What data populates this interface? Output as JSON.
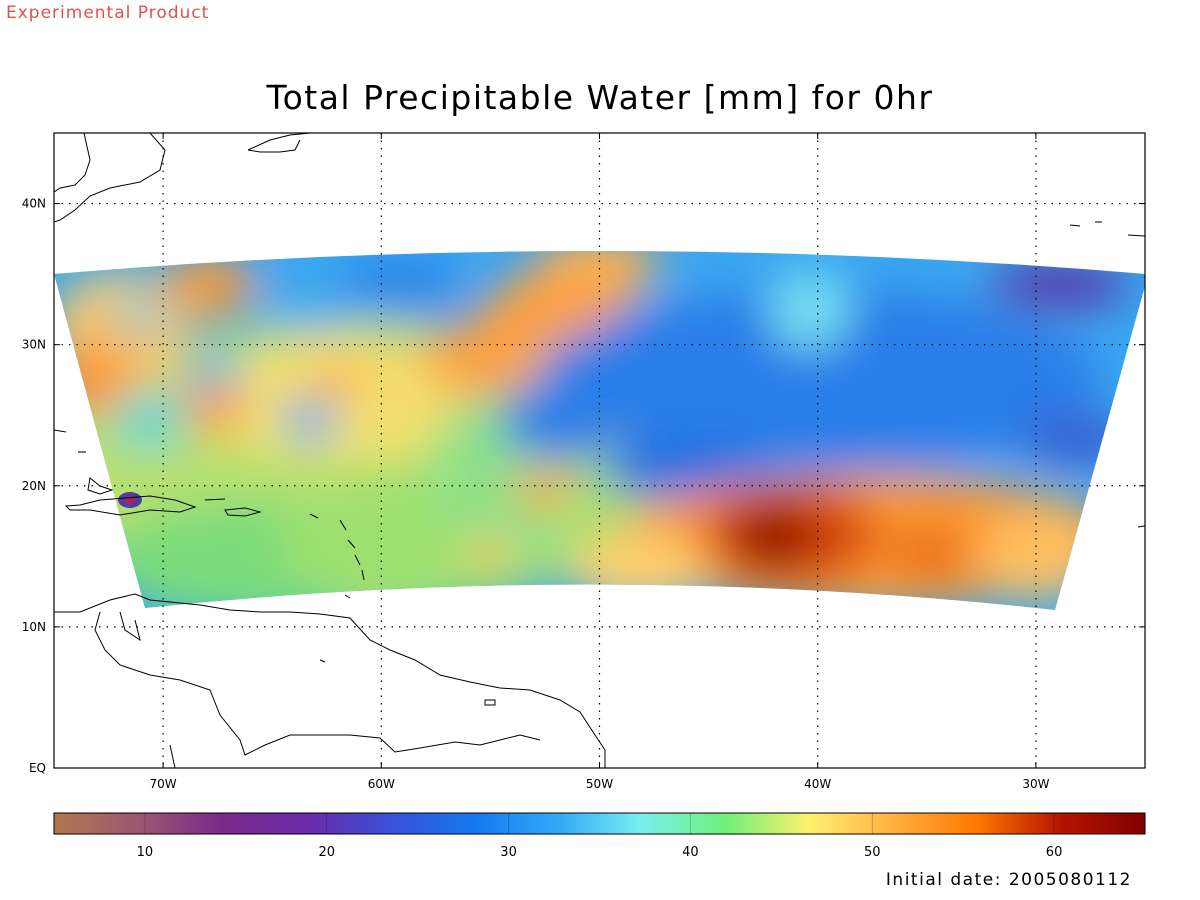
{
  "header": {
    "experimental_label": "Experimental Product",
    "title": "Total Precipitable Water [mm] for 0hr"
  },
  "map": {
    "lon_range": [
      -75,
      -25
    ],
    "lat_range": [
      0,
      45
    ],
    "lon_ticks": [
      {
        "value": -70,
        "label": "70W"
      },
      {
        "value": -60,
        "label": "60W"
      },
      {
        "value": -50,
        "label": "50W"
      },
      {
        "value": -40,
        "label": "40W"
      },
      {
        "value": -30,
        "label": "30W"
      }
    ],
    "lat_ticks": [
      {
        "value": 0,
        "label": "EQ"
      },
      {
        "value": 10,
        "label": "10N"
      },
      {
        "value": 20,
        "label": "20N"
      },
      {
        "value": 30,
        "label": "30N"
      },
      {
        "value": 40,
        "label": "40N"
      }
    ],
    "grid": "dotted",
    "field_colors": {
      "very_low": "#5a1a8c",
      "low": "#1e78e6",
      "mid_low": "#32aaf0",
      "mid": "#64dc82",
      "mid_high": "#ffe664",
      "high": "#ff8c1e",
      "very_high": "#960a00"
    }
  },
  "colorbar": {
    "range": [
      5,
      65
    ],
    "ticks": [
      {
        "value": 10,
        "label": "10"
      },
      {
        "value": 20,
        "label": "20"
      },
      {
        "value": 30,
        "label": "30"
      },
      {
        "value": 40,
        "label": "40"
      },
      {
        "value": 50,
        "label": "50"
      },
      {
        "value": 60,
        "label": "60"
      }
    ],
    "colors": [
      "#b07850",
      "#9a5870",
      "#7a2a8a",
      "#6a2aa8",
      "#3a50d8",
      "#1478f0",
      "#32a8f8",
      "#78f0f0",
      "#6ef078",
      "#fff070",
      "#ffb040",
      "#ff7800",
      "#b41400",
      "#820000"
    ]
  },
  "footer": {
    "initial_date": "Initial date: 2005080112"
  }
}
